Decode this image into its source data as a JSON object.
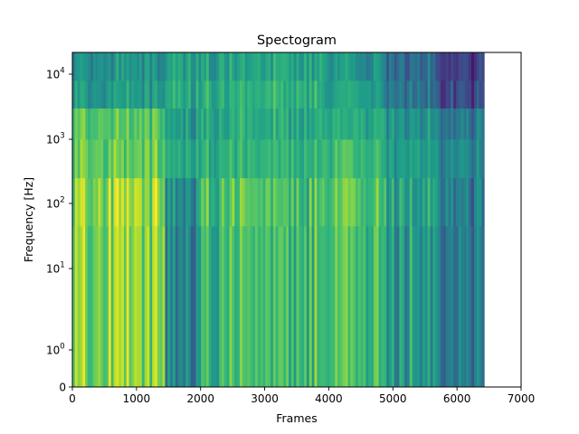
{
  "chart_data": {
    "type": "heatmap",
    "title": "Spectogram",
    "xlabel": "Frames",
    "ylabel": "Frequency [Hz]",
    "xlim": [
      0,
      7000
    ],
    "ylim": [
      0,
      22050
    ],
    "yscale": "symlog",
    "frames_extent": 6425,
    "colormap": "viridis",
    "grid": false,
    "legend": "none",
    "x_ticks": [
      {
        "value": 0,
        "label": "0"
      },
      {
        "value": 1000,
        "label": "1000"
      },
      {
        "value": 2000,
        "label": "2000"
      },
      {
        "value": 3000,
        "label": "3000"
      },
      {
        "value": 4000,
        "label": "4000"
      },
      {
        "value": 5000,
        "label": "5000"
      },
      {
        "value": 6000,
        "label": "6000"
      },
      {
        "value": 7000,
        "label": "7000"
      }
    ],
    "y_ticks": [
      {
        "value": 0,
        "base": "0",
        "exp": ""
      },
      {
        "value": 1,
        "base": "10",
        "exp": "0"
      },
      {
        "value": 10,
        "base": "10",
        "exp": "1"
      },
      {
        "value": 100,
        "base": "10",
        "exp": "2"
      },
      {
        "value": 1000,
        "base": "10",
        "exp": "3"
      },
      {
        "value": 10000,
        "base": "10",
        "exp": "4"
      }
    ],
    "segments": [
      {
        "from": 0,
        "to": 1450,
        "low_level": 0.82,
        "mid_level": 0.75,
        "high_level": 0.55
      },
      {
        "from": 1450,
        "to": 1950,
        "low_level": 0.42,
        "mid_level": 0.55,
        "high_level": 0.58
      },
      {
        "from": 1950,
        "to": 3900,
        "low_level": 0.68,
        "mid_level": 0.62,
        "high_level": 0.62
      },
      {
        "from": 3900,
        "to": 4800,
        "low_level": 0.72,
        "mid_level": 0.66,
        "high_level": 0.58
      },
      {
        "from": 4800,
        "to": 5650,
        "low_level": 0.58,
        "mid_level": 0.55,
        "high_level": 0.42
      },
      {
        "from": 5650,
        "to": 6425,
        "low_level": 0.38,
        "mid_level": 0.42,
        "high_level": 0.22
      }
    ]
  }
}
